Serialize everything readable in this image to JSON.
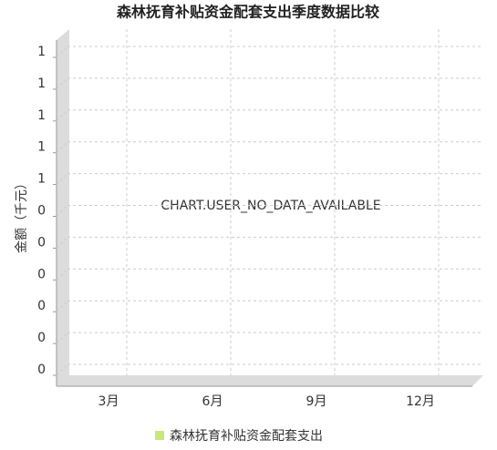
{
  "chart_data": {
    "type": "bar",
    "title": "森林抚育补贴资金配套支出季度数据比较",
    "y_label": "金额（千元）",
    "message": "CHART.USER_NO_DATA_AVAILABLE",
    "categories": [
      "3月",
      "6月",
      "9月",
      "12月"
    ],
    "series": [
      {
        "name": "森林抚育补贴资金配套支出",
        "color": "#c6e87a",
        "values": [
          null,
          null,
          null,
          null
        ]
      }
    ],
    "ylim": [
      0,
      1
    ],
    "yticks": [
      {
        "value": 0,
        "label": "0"
      },
      {
        "value": 0.1,
        "label": "0"
      },
      {
        "value": 0.2,
        "label": "0"
      },
      {
        "value": 0.3,
        "label": "0"
      },
      {
        "value": 0.4,
        "label": "0"
      },
      {
        "value": 0.5,
        "label": "0"
      },
      {
        "value": 0.6,
        "label": "1"
      },
      {
        "value": 0.7,
        "label": "1"
      },
      {
        "value": 0.8,
        "label": "1"
      },
      {
        "value": 0.9,
        "label": "1"
      },
      {
        "value": 1,
        "label": "1"
      }
    ],
    "grid": true
  }
}
